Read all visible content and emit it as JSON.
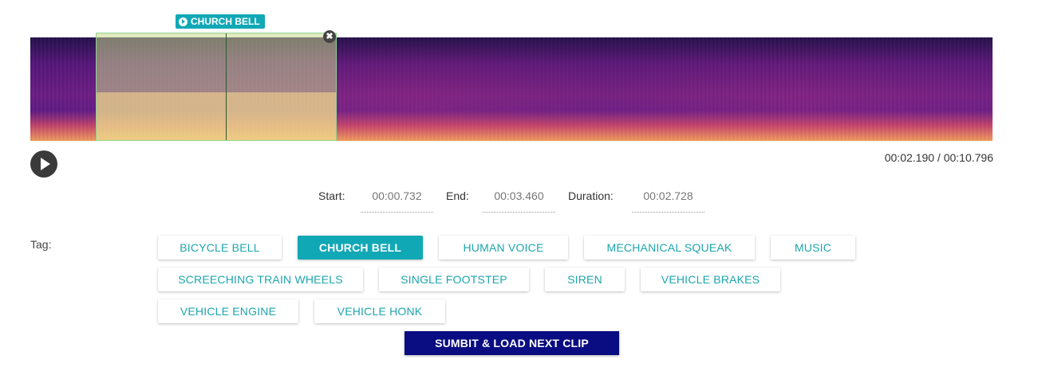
{
  "region": {
    "label": "CHURCH BELL",
    "close_glyph": "✖"
  },
  "player": {
    "current_time": "00:02.190",
    "total_time": "00:10.796",
    "separator": " / "
  },
  "selection": {
    "start_label": "Start:",
    "start_value": "00:00.732",
    "end_label": "End:",
    "end_value": "00:03.460",
    "duration_label": "Duration:",
    "duration_value": "00:02.728"
  },
  "tags": {
    "label": "Tag:",
    "items": [
      "BICYCLE BELL",
      "CHURCH BELL",
      "HUMAN VOICE",
      "MECHANICAL SQUEAK",
      "MUSIC",
      "SCREECHING TRAIN WHEELS",
      "SINGLE FOOTSTEP",
      "SIREN",
      "VEHICLE BRAKES",
      "VEHICLE ENGINE",
      "VEHICLE HONK"
    ],
    "selected": "CHURCH BELL"
  },
  "submit_label": "SUMBIT & LOAD NEXT CLIP",
  "colors": {
    "accent": "#11a8b6",
    "tag_text": "#1da6ad",
    "submit_bg": "#0a0c82"
  }
}
